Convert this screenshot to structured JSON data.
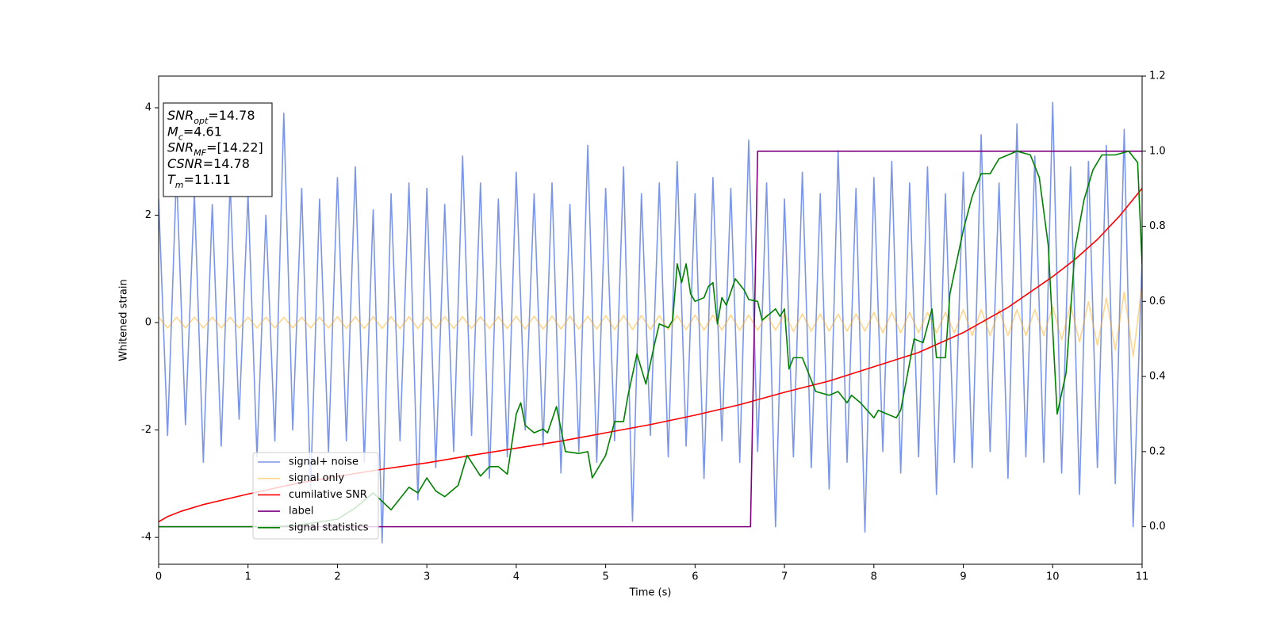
{
  "chart_data": {
    "type": "line",
    "x_label": "Time (s)",
    "y_label": "Whitened strain",
    "xlim": [
      0,
      11
    ],
    "xticks": [
      0,
      1,
      2,
      3,
      4,
      5,
      6,
      7,
      8,
      9,
      10,
      11
    ],
    "ylim": [
      -4.5,
      4.59
    ],
    "yticks": [
      -4,
      -2,
      0,
      2,
      4
    ],
    "y2lim": [
      -0.1,
      1.2
    ],
    "y2ticks": [
      {
        "value": 0,
        "label": "0.0"
      },
      {
        "value": 0.2,
        "label": "0.2"
      },
      {
        "value": 0.4,
        "label": "0.4"
      },
      {
        "value": 0.6,
        "label": "0.6"
      },
      {
        "value": 0.8,
        "label": "0.8"
      },
      {
        "value": 1,
        "label": "1.0"
      },
      {
        "value": 1.2,
        "label": "1.2"
      }
    ],
    "legend": "lower left",
    "x": [
      0,
      0.1,
      0.2,
      0.3,
      0.4,
      0.5,
      0.6,
      0.7,
      0.8,
      0.9,
      1,
      1.1,
      1.2,
      1.3,
      1.4,
      1.5,
      1.6,
      1.7,
      1.8,
      1.9,
      2,
      2.1,
      2.2,
      2.3,
      2.4,
      2.5,
      2.6,
      2.7,
      2.8,
      2.9,
      3,
      3.1,
      3.2,
      3.3,
      3.4,
      3.5,
      3.6,
      3.7,
      3.8,
      3.9,
      4,
      4.1,
      4.2,
      4.3,
      4.4,
      4.5,
      4.6,
      4.7,
      4.8,
      4.9,
      5,
      5.1,
      5.2,
      5.3,
      5.4,
      5.5,
      5.6,
      5.7,
      5.8,
      5.9,
      6,
      6.1,
      6.2,
      6.3,
      6.4,
      6.5,
      6.6,
      6.7,
      6.8,
      6.9,
      7,
      7.1,
      7.2,
      7.3,
      7.4,
      7.5,
      7.6,
      7.7,
      7.8,
      7.9,
      8,
      8.1,
      8.2,
      8.3,
      8.4,
      8.5,
      8.6,
      8.7,
      8.8,
      8.9,
      9,
      9.1,
      9.2,
      9.3,
      9.4,
      9.5,
      9.6,
      9.7,
      9.8,
      9.9,
      10,
      10.1,
      10.2,
      10.3,
      10.4,
      10.5,
      10.6,
      10.7,
      10.8,
      10.9,
      11
    ],
    "series": [
      {
        "name": "signal+ noise",
        "color": "#7b96e9",
        "axis": "y",
        "values": [
          2.3,
          -2.1,
          2.8,
          -1.9,
          2.4,
          -2.6,
          2.2,
          -2.3,
          2.6,
          -1.8,
          2.4,
          -2.5,
          2.0,
          -2.2,
          3.9,
          -2.0,
          2.5,
          -3.1,
          2.3,
          -2.4,
          2.7,
          -2.2,
          2.9,
          -2.6,
          2.1,
          -4.1,
          2.4,
          -2.2,
          2.6,
          -3.3,
          2.5,
          -2.7,
          2.2,
          -2.4,
          3.1,
          -2.1,
          2.6,
          -2.9,
          2.3,
          -2.5,
          2.8,
          -2.0,
          2.4,
          -2.3,
          2.6,
          -2.8,
          2.2,
          -2.4,
          3.3,
          -2.6,
          2.5,
          -2.2,
          2.9,
          -3.7,
          2.4,
          -2.1,
          2.6,
          -2.5,
          3.0,
          -2.3,
          2.4,
          -2.9,
          2.7,
          -2.2,
          2.5,
          -2.6,
          3.4,
          -2.4,
          2.6,
          -3.8,
          2.3,
          -2.5,
          2.8,
          -2.7,
          2.4,
          -3.1,
          3.2,
          -2.6,
          2.5,
          -3.9,
          2.7,
          -2.4,
          3.0,
          -2.8,
          2.6,
          -2.5,
          2.9,
          -3.2,
          2.4,
          -2.6,
          2.8,
          -2.7,
          3.5,
          -2.4,
          2.6,
          -2.9,
          3.7,
          -2.5,
          3.1,
          -2.6,
          4.1,
          -2.8,
          2.9,
          -3.2,
          3.0,
          -2.7,
          3.3,
          -3.0,
          3.6,
          -3.8,
          1.2
        ]
      },
      {
        "name": "signal only",
        "color": "#ffa500",
        "axis": "y",
        "values": [
          0.1,
          -0.1,
          0.1,
          -0.1,
          0.1,
          -0.1,
          0.1,
          -0.1,
          0.1,
          -0.1,
          0.1,
          -0.1,
          0.1,
          -0.1,
          0.1,
          -0.1,
          0.1,
          -0.1,
          0.1,
          -0.1,
          0.11,
          -0.11,
          0.11,
          -0.11,
          0.11,
          -0.11,
          0.11,
          -0.11,
          0.11,
          -0.11,
          0.11,
          -0.11,
          0.11,
          -0.11,
          0.11,
          -0.11,
          0.11,
          -0.11,
          0.11,
          -0.11,
          0.12,
          -0.12,
          0.12,
          -0.12,
          0.12,
          -0.12,
          0.12,
          -0.12,
          0.12,
          -0.12,
          0.13,
          -0.13,
          0.13,
          -0.13,
          0.13,
          -0.13,
          0.13,
          -0.13,
          0.13,
          -0.13,
          0.14,
          -0.14,
          0.14,
          -0.14,
          0.14,
          -0.14,
          0.14,
          -0.14,
          0.14,
          -0.14,
          0.16,
          -0.16,
          0.16,
          -0.16,
          0.16,
          -0.16,
          0.16,
          -0.16,
          0.16,
          -0.16,
          0.19,
          -0.19,
          0.19,
          -0.19,
          0.19,
          -0.19,
          0.19,
          -0.19,
          0.19,
          -0.19,
          0.24,
          -0.24,
          0.24,
          -0.24,
          0.24,
          -0.24,
          0.24,
          -0.24,
          0.24,
          -0.24,
          0.3,
          -0.32,
          0.34,
          -0.36,
          0.39,
          -0.42,
          0.46,
          -0.51,
          0.57,
          -0.63,
          0.7
        ]
      },
      {
        "name": "cumilative SNR",
        "color": "#ff0000",
        "axis": "y2",
        "x": [
          0,
          0.1,
          0.25,
          0.5,
          1,
          1.5,
          2,
          2.5,
          3,
          3.5,
          4,
          4.5,
          5,
          5.5,
          6,
          6.5,
          7,
          7.5,
          8,
          8.5,
          9,
          9.5,
          10,
          10.25,
          10.5,
          10.75,
          11
        ],
        "values": [
          0.013,
          0.027,
          0.041,
          0.059,
          0.087,
          0.113,
          0.134,
          0.153,
          0.17,
          0.19,
          0.209,
          0.228,
          0.25,
          0.272,
          0.297,
          0.325,
          0.358,
          0.388,
          0.426,
          0.464,
          0.517,
          0.584,
          0.666,
          0.712,
          0.765,
          0.828,
          0.901
        ]
      },
      {
        "name": "label",
        "color": "#800080",
        "axis": "y2",
        "x": [
          0,
          6.62,
          6.7,
          11
        ],
        "values": [
          0,
          0,
          1,
          1
        ]
      },
      {
        "name": "signal statistics",
        "color": "#008000",
        "axis": "y2",
        "x": [
          0,
          1,
          1.5,
          2,
          2.2,
          2.4,
          2.6,
          2.8,
          2.9,
          3,
          3.1,
          3.2,
          3.35,
          3.45,
          3.6,
          3.7,
          3.8,
          3.9,
          4,
          4.05,
          4.1,
          4.2,
          4.3,
          4.35,
          4.45,
          4.55,
          4.7,
          4.8,
          4.85,
          5,
          5.1,
          5.2,
          5.25,
          5.35,
          5.45,
          5.55,
          5.6,
          5.7,
          5.75,
          5.8,
          5.85,
          5.9,
          5.95,
          6,
          6.1,
          6.15,
          6.2,
          6.25,
          6.3,
          6.35,
          6.45,
          6.55,
          6.6,
          6.7,
          6.75,
          6.85,
          6.9,
          6.95,
          7,
          7.05,
          7.1,
          7.2,
          7.35,
          7.5,
          7.6,
          7.7,
          7.75,
          7.85,
          8,
          8.05,
          8.15,
          8.25,
          8.3,
          8.45,
          8.55,
          8.65,
          8.7,
          8.8,
          8.85,
          9,
          9.1,
          9.2,
          9.3,
          9.4,
          9.6,
          9.75,
          9.85,
          9.95,
          10.05,
          10.15,
          10.25,
          10.35,
          10.45,
          10.55,
          10.7,
          10.85,
          10.95,
          11
        ],
        "values": [
          0,
          0,
          0.002,
          0.02,
          0.05,
          0.09,
          0.045,
          0.105,
          0.09,
          0.13,
          0.095,
          0.08,
          0.11,
          0.19,
          0.135,
          0.16,
          0.16,
          0.14,
          0.3,
          0.33,
          0.27,
          0.25,
          0.26,
          0.25,
          0.32,
          0.2,
          0.195,
          0.2,
          0.13,
          0.19,
          0.28,
          0.28,
          0.35,
          0.46,
          0.38,
          0.49,
          0.54,
          0.53,
          0.55,
          0.7,
          0.65,
          0.7,
          0.62,
          0.6,
          0.61,
          0.64,
          0.65,
          0.54,
          0.61,
          0.59,
          0.66,
          0.63,
          0.605,
          0.6,
          0.55,
          0.57,
          0.58,
          0.56,
          0.58,
          0.42,
          0.45,
          0.45,
          0.36,
          0.35,
          0.36,
          0.33,
          0.35,
          0.33,
          0.29,
          0.31,
          0.3,
          0.29,
          0.31,
          0.5,
          0.49,
          0.58,
          0.45,
          0.45,
          0.62,
          0.79,
          0.88,
          0.94,
          0.94,
          0.98,
          1,
          0.99,
          0.93,
          0.75,
          0.3,
          0.41,
          0.74,
          0.87,
          0.95,
          0.99,
          0.99,
          1,
          0.97,
          0.7
        ]
      }
    ],
    "annotations": [
      {
        "symbol": "SNR",
        "sub": "opt",
        "text": "=14.78"
      },
      {
        "symbol": "M",
        "sub": "c",
        "text": "=4.61"
      },
      {
        "symbol": "SNR",
        "sub": "MF",
        "text": "=[14.22]"
      },
      {
        "symbol": "CSNR",
        "text": "=14.78"
      },
      {
        "symbol": "T",
        "sub": "m",
        "text": "=11.11"
      }
    ]
  }
}
